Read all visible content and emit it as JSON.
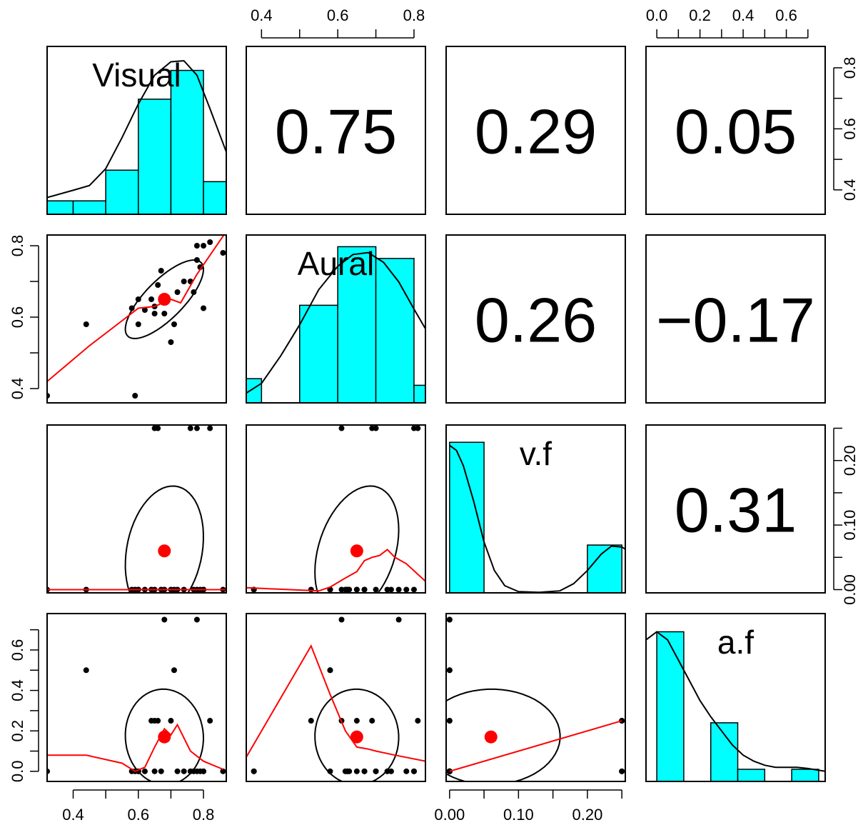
{
  "chart_data": {
    "type": "scatter",
    "variables": [
      "Visual",
      "Aural",
      "v.f",
      "a.f"
    ],
    "ranges": [
      [
        0.32,
        0.87
      ],
      [
        0.36,
        0.83
      ],
      [
        -0.005,
        0.255
      ],
      [
        -0.05,
        0.78
      ]
    ],
    "ticks": [
      [
        "0.4",
        "0.6",
        "0.8"
      ],
      [
        "0.4",
        "0.6",
        "0.8"
      ],
      [
        "0.00",
        "0.10",
        "0.20"
      ],
      [
        "0.0",
        "0.2",
        "0.4",
        "0.6"
      ]
    ],
    "correlations": [
      {
        "row": 0,
        "col": 1,
        "value": "0.75"
      },
      {
        "row": 0,
        "col": 2,
        "value": "0.29"
      },
      {
        "row": 0,
        "col": 3,
        "value": "0.05"
      },
      {
        "row": 1,
        "col": 2,
        "value": "0.26"
      },
      {
        "row": 1,
        "col": 3,
        "value": "−0.17"
      },
      {
        "row": 2,
        "col": 3,
        "value": "0.31"
      }
    ],
    "histograms": [
      {
        "breaks": [
          0.3,
          0.4,
          0.5,
          0.6,
          0.7,
          0.8,
          0.9
        ],
        "density": [
          0.28,
          0.28,
          0.92,
          2.4,
          3.0,
          0.68
        ]
      },
      {
        "breaks": [
          0.3,
          0.4,
          0.5,
          0.6,
          0.7,
          0.8,
          0.9
        ],
        "density": [
          0.62,
          0.0,
          2.5,
          4.0,
          3.7,
          0.45
        ]
      },
      {
        "breaks": [
          0.0,
          0.05,
          0.1,
          0.15,
          0.2,
          0.25
        ],
        "density": [
          14.8,
          0.0,
          0.0,
          0.0,
          4.7
        ]
      },
      {
        "breaks": [
          0.0,
          0.125,
          0.25,
          0.375,
          0.5,
          0.625,
          0.75
        ],
        "density": [
          3.7,
          0.0,
          1.45,
          0.3,
          0.0,
          0.3
        ]
      }
    ],
    "densities": [
      [
        [
          0.32,
          0.35
        ],
        [
          0.4,
          0.5
        ],
        [
          0.45,
          0.6
        ],
        [
          0.5,
          0.95
        ],
        [
          0.55,
          1.6
        ],
        [
          0.6,
          2.3
        ],
        [
          0.65,
          2.9
        ],
        [
          0.7,
          3.18
        ],
        [
          0.74,
          3.2
        ],
        [
          0.78,
          2.9
        ],
        [
          0.82,
          2.2
        ],
        [
          0.87,
          1.3
        ]
      ],
      [
        [
          0.36,
          0.25
        ],
        [
          0.4,
          0.5
        ],
        [
          0.45,
          1.2
        ],
        [
          0.5,
          2.0
        ],
        [
          0.55,
          2.9
        ],
        [
          0.6,
          3.5
        ],
        [
          0.64,
          3.8
        ],
        [
          0.68,
          3.85
        ],
        [
          0.72,
          3.6
        ],
        [
          0.76,
          3.1
        ],
        [
          0.8,
          2.4
        ],
        [
          0.83,
          1.9
        ]
      ],
      [
        [
          0.0,
          14.5
        ],
        [
          0.01,
          14.0
        ],
        [
          0.02,
          12.5
        ],
        [
          0.035,
          9.0
        ],
        [
          0.05,
          5.0
        ],
        [
          0.065,
          2.2
        ],
        [
          0.08,
          0.7
        ],
        [
          0.1,
          0.12
        ],
        [
          0.13,
          0.05
        ],
        [
          0.16,
          0.2
        ],
        [
          0.18,
          0.9
        ],
        [
          0.2,
          2.2
        ],
        [
          0.22,
          3.8
        ],
        [
          0.235,
          4.6
        ],
        [
          0.25,
          4.5
        ],
        [
          0.255,
          4.3
        ]
      ],
      [
        [
          -0.05,
          3.5
        ],
        [
          0.0,
          3.7
        ],
        [
          0.05,
          3.5
        ],
        [
          0.1,
          3.0
        ],
        [
          0.15,
          2.5
        ],
        [
          0.2,
          2.0
        ],
        [
          0.25,
          1.6
        ],
        [
          0.3,
          1.25
        ],
        [
          0.35,
          0.9
        ],
        [
          0.4,
          0.65
        ],
        [
          0.45,
          0.5
        ],
        [
          0.5,
          0.4
        ],
        [
          0.55,
          0.35
        ],
        [
          0.6,
          0.35
        ],
        [
          0.65,
          0.35
        ],
        [
          0.7,
          0.32
        ],
        [
          0.78,
          0.25
        ]
      ]
    ],
    "hist_ylim": [
      [
        0,
        3.5
      ],
      [
        0,
        4.3
      ],
      [
        0,
        16.5
      ],
      [
        0,
        4.15
      ]
    ],
    "observations": [
      [
        0.32,
        0.38,
        0.0,
        0.0
      ],
      [
        0.44,
        0.58,
        0.0,
        0.5
      ],
      [
        0.59,
        0.38,
        0.0,
        0.0
      ],
      [
        0.58,
        0.625,
        0.0,
        0.0
      ],
      [
        0.6,
        0.65,
        0.0,
        0.0
      ],
      [
        0.6,
        0.58,
        0.0,
        0.0
      ],
      [
        0.62,
        0.62,
        0.0,
        0.0
      ],
      [
        0.64,
        0.65,
        0.0,
        0.25
      ],
      [
        0.65,
        0.61,
        0.25,
        0.25
      ],
      [
        0.65,
        0.63,
        0.0,
        0.0
      ],
      [
        0.66,
        0.69,
        0.25,
        0.25
      ],
      [
        0.67,
        0.73,
        0.0,
        0.0
      ],
      [
        0.68,
        0.61,
        0.0,
        0.75
      ],
      [
        0.7,
        0.53,
        0.0,
        0.25
      ],
      [
        0.71,
        0.58,
        0.0,
        0.5
      ],
      [
        0.72,
        0.67,
        0.0,
        0.0
      ],
      [
        0.74,
        0.7,
        0.0,
        0.0
      ],
      [
        0.76,
        0.7,
        0.25,
        0.0
      ],
      [
        0.77,
        0.67,
        0.0,
        0.0
      ],
      [
        0.78,
        0.76,
        0.0,
        0.75
      ],
      [
        0.78,
        0.8,
        0.25,
        0.0
      ],
      [
        0.79,
        0.74,
        0.0,
        0.0
      ],
      [
        0.8,
        0.8,
        0.0,
        0.0
      ],
      [
        0.82,
        0.81,
        0.25,
        0.25
      ],
      [
        0.8,
        0.625,
        0.0,
        0.0
      ],
      [
        0.86,
        0.78,
        0.0,
        0.0
      ]
    ],
    "means": [
      0.68,
      0.65,
      0.06,
      0.17
    ],
    "ellipse_r": 0.28,
    "loess": {
      "1-0": [
        [
          0.32,
          0.42
        ],
        [
          0.45,
          0.52
        ],
        [
          0.55,
          0.59
        ],
        [
          0.6,
          0.625
        ],
        [
          0.65,
          0.63
        ],
        [
          0.7,
          0.65
        ],
        [
          0.73,
          0.64
        ],
        [
          0.78,
          0.72
        ],
        [
          0.87,
          0.84
        ]
      ],
      "2-0": [
        [
          0.32,
          0.0
        ],
        [
          0.45,
          0.0
        ],
        [
          0.55,
          0.0
        ],
        [
          0.65,
          0.0
        ],
        [
          0.75,
          0.0
        ],
        [
          0.87,
          0.0
        ]
      ],
      "2-1": [
        [
          0.36,
          0.003
        ],
        [
          0.55,
          -0.002
        ],
        [
          0.58,
          0.004
        ],
        [
          0.62,
          0.018
        ],
        [
          0.65,
          0.028
        ],
        [
          0.67,
          0.045
        ],
        [
          0.69,
          0.05
        ],
        [
          0.71,
          0.053
        ],
        [
          0.73,
          0.062
        ],
        [
          0.75,
          0.05
        ],
        [
          0.78,
          0.04
        ],
        [
          0.83,
          0.013
        ]
      ],
      "3-0": [
        [
          0.32,
          0.08
        ],
        [
          0.44,
          0.08
        ],
        [
          0.55,
          0.04
        ],
        [
          0.59,
          0.0
        ],
        [
          0.62,
          0.02
        ],
        [
          0.65,
          0.12
        ],
        [
          0.68,
          0.21
        ],
        [
          0.7,
          0.18
        ],
        [
          0.72,
          0.23
        ],
        [
          0.76,
          0.1
        ],
        [
          0.8,
          0.05
        ],
        [
          0.86,
          0.01
        ]
      ],
      "3-1": [
        [
          0.36,
          0.07
        ],
        [
          0.53,
          0.62
        ],
        [
          0.58,
          0.38
        ],
        [
          0.62,
          0.2
        ],
        [
          0.65,
          0.12
        ],
        [
          0.68,
          0.11
        ],
        [
          0.7,
          0.1
        ],
        [
          0.75,
          0.08
        ],
        [
          0.83,
          0.05
        ]
      ],
      "3-2": [
        [
          0.0,
          0.0
        ],
        [
          0.25,
          0.25
        ]
      ]
    }
  }
}
